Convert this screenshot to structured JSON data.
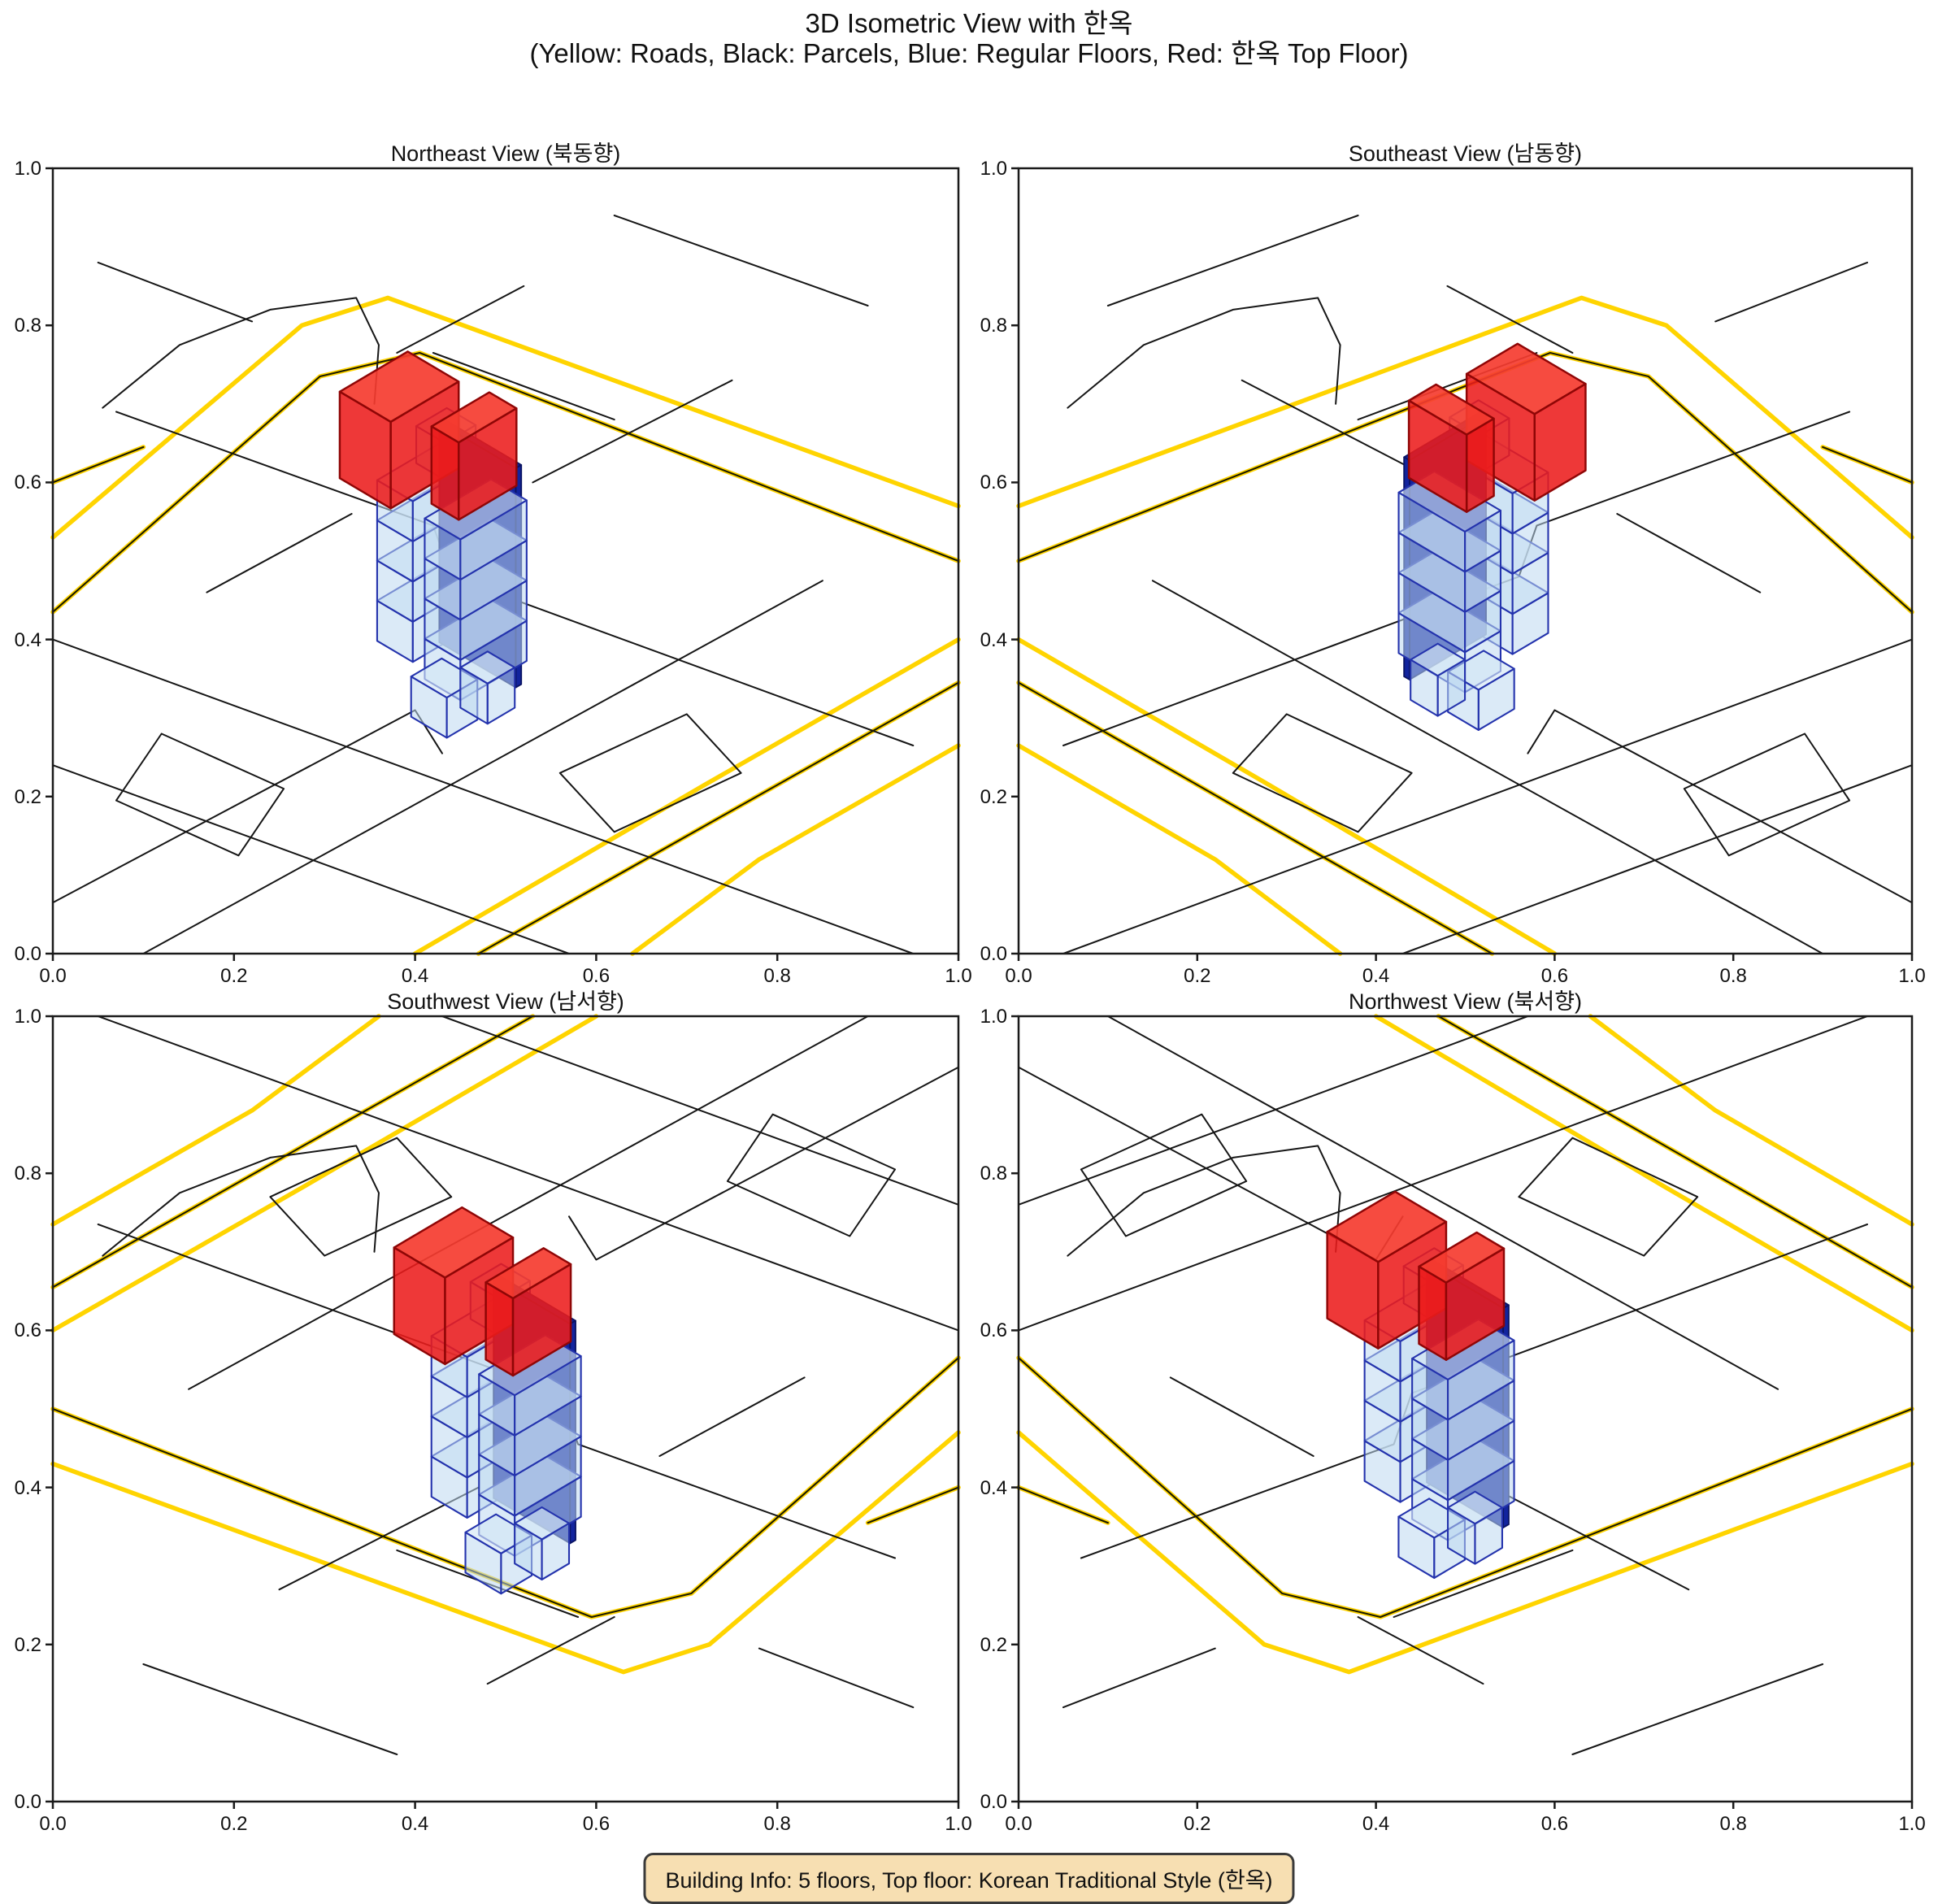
{
  "header": {
    "title": "3D Isometric View with 한옥",
    "subtitle": "(Yellow: Roads, Black: Parcels, Blue: Regular Floors, Red: 한옥 Top Floor)"
  },
  "info": {
    "text": "Building Info: 5 floors, Top floor: Korean Traditional Style (한옥)"
  },
  "chart_data": {
    "type": "3d-isometric-multiview-map",
    "title": "3D Isometric View with 한옥",
    "subtitle": "(Yellow: Roads, Black: Parcels, Blue: Regular Floors, Red: 한옥 Top Floor)",
    "legend_meaning": {
      "yellow": "Roads",
      "black": "Parcels",
      "blue": "Regular Floors",
      "red": "한옥 Top Floor"
    },
    "building_info": {
      "floors": 5,
      "top_floor_style": "Korean Traditional Style (한옥)"
    },
    "axis": {
      "x_ticks": [
        "0.0",
        "0.2",
        "0.4",
        "0.6",
        "0.8",
        "1.0"
      ],
      "y_ticks": [
        "0.0",
        "0.2",
        "0.4",
        "0.6",
        "0.8",
        "1.0"
      ],
      "x_range": [
        0,
        1
      ],
      "y_range": [
        0,
        1
      ],
      "grid": false
    },
    "colors": {
      "road_yellow": "#FFD400",
      "road_casing": "#1a1a00",
      "parcel_black": "#161616",
      "frame": "#1a1a1a",
      "blue_fill": "rgba(190,216,240,0.55)",
      "blue_top_fill": "rgba(212,231,246,0.65)",
      "blue_edge": "#2433ad",
      "core_fill": "#12249e",
      "core_edge": "#0a1464",
      "red_fill": "rgba(236,28,28,0.88)",
      "red_top_fill": "rgba(245,60,48,0.92)",
      "red_edge": "#8f0606",
      "info_bg": "#F7DFB2"
    },
    "views": [
      {
        "id": "northeast",
        "title": "Northeast View (북동향)",
        "map_transform": "none",
        "building": {
          "fx": 0.42,
          "fy": 0.47,
          "mirror": false
        }
      },
      {
        "id": "southeast",
        "title": "Southeast View (남동향)",
        "map_transform": "mirror-x",
        "building": {
          "fx": 0.53,
          "fy": 0.46,
          "mirror": true
        }
      },
      {
        "id": "southwest",
        "title": "Southwest View (남서향)",
        "map_transform": "rotate-180",
        "building": {
          "fx": 0.48,
          "fy": 0.48,
          "mirror": false
        }
      },
      {
        "id": "northwest",
        "title": "Northwest View (북서향)",
        "map_transform": "mirror-y",
        "building": {
          "fx": 0.45,
          "fy": 0.46,
          "mirror": false
        }
      }
    ],
    "map_geometry": {
      "gold_roads": [
        [
          [
            0.0,
            0.47
          ],
          [
            0.275,
            0.2
          ],
          [
            0.37,
            0.165
          ],
          [
            1.0,
            0.43
          ]
        ],
        [
          [
            0.4,
            1.0
          ],
          [
            0.72,
            0.785
          ],
          [
            1.0,
            0.6
          ]
        ],
        [
          [
            0.64,
            1.0
          ],
          [
            0.78,
            0.88
          ],
          [
            1.0,
            0.735
          ]
        ]
      ],
      "cased_roads": [
        [
          [
            0.0,
            0.565
          ],
          [
            0.295,
            0.265
          ],
          [
            0.405,
            0.235
          ],
          [
            1.0,
            0.5
          ]
        ],
        [
          [
            0.47,
            1.0
          ],
          [
            1.0,
            0.655
          ]
        ],
        [
          [
            0.0,
            0.4
          ],
          [
            0.1,
            0.355
          ]
        ]
      ],
      "parcel_lines": [
        [
          [
            0.0,
            0.6
          ],
          [
            0.95,
            1.0
          ]
        ],
        [
          [
            0.0,
            0.76
          ],
          [
            0.57,
            1.0
          ]
        ],
        [
          [
            0.07,
            0.31
          ],
          [
            0.42,
            0.455
          ],
          [
            0.44,
            0.52
          ],
          [
            0.95,
            0.735
          ]
        ],
        [
          [
            0.42,
            0.235
          ],
          [
            0.62,
            0.32
          ]
        ],
        [
          [
            0.1,
            1.0
          ],
          [
            0.85,
            0.525
          ]
        ],
        [
          [
            0.0,
            0.935
          ],
          [
            0.4,
            0.69
          ],
          [
            0.43,
            0.745
          ]
        ],
        [
          [
            0.38,
            0.235
          ],
          [
            0.52,
            0.15
          ]
        ],
        [
          [
            0.53,
            0.4
          ],
          [
            0.75,
            0.27
          ]
        ],
        [
          [
            0.17,
            0.54
          ],
          [
            0.33,
            0.44
          ]
        ],
        [
          [
            0.12,
            0.72
          ],
          [
            0.255,
            0.79
          ],
          [
            0.205,
            0.875
          ],
          [
            0.07,
            0.805
          ],
          [
            0.12,
            0.72
          ]
        ],
        [
          [
            0.56,
            0.77
          ],
          [
            0.7,
            0.695
          ],
          [
            0.76,
            0.77
          ],
          [
            0.62,
            0.845
          ],
          [
            0.56,
            0.77
          ]
        ],
        [
          [
            0.62,
            0.06
          ],
          [
            0.9,
            0.175
          ]
        ],
        [
          [
            0.05,
            0.12
          ],
          [
            0.22,
            0.195
          ]
        ]
      ],
      "boundary_arc": [
        [
          [
            0.055,
            0.305
          ],
          [
            0.14,
            0.225
          ],
          [
            0.24,
            0.18
          ],
          [
            0.335,
            0.165
          ],
          [
            0.36,
            0.225
          ],
          [
            0.355,
            0.3
          ]
        ]
      ]
    },
    "building_geometry": {
      "iso": {
        "U": 44,
        "V": 26,
        "scale": 0.95,
        "center": [
          72.6,
          -134
        ]
      },
      "boxes": [
        {
          "t": "blue",
          "a0": 0,
          "a1": 1.9,
          "b0": 0,
          "b1": 1.05,
          "z0": 0,
          "z1": 52
        },
        {
          "t": "blue",
          "a0": 0,
          "a1": 1.9,
          "b0": 0,
          "b1": 1.05,
          "z0": 52,
          "z1": 104
        },
        {
          "t": "blue",
          "a0": 0,
          "a1": 1.9,
          "b0": 0,
          "b1": 1.05,
          "z0": 104,
          "z1": 156
        },
        {
          "t": "blue",
          "a0": 0,
          "a1": 1.9,
          "b0": 0,
          "b1": 1.05,
          "z0": 156,
          "z1": 208
        },
        {
          "t": "blue",
          "a0": 1.0,
          "a1": 1.9,
          "b0": 0.15,
          "b1": 1.0,
          "z0": 208,
          "z1": 256
        },
        {
          "t": "core",
          "a0": 1.88,
          "a1": 2.04,
          "b0": -0.05,
          "b1": 2.2,
          "z0": -52,
          "z1": 232
        },
        {
          "t": "blue",
          "a0": 0.25,
          "a1": 2.2,
          "b0": 1.15,
          "b1": 2.2,
          "z0": -26,
          "z1": 26
        },
        {
          "t": "blue",
          "a0": 0.25,
          "a1": 2.2,
          "b0": 1.15,
          "b1": 2.2,
          "z0": 26,
          "z1": 78
        },
        {
          "t": "blue",
          "a0": 0.25,
          "a1": 2.2,
          "b0": 1.15,
          "b1": 2.2,
          "z0": 78,
          "z1": 130
        },
        {
          "t": "blue",
          "a0": 0.25,
          "a1": 2.2,
          "b0": 1.15,
          "b1": 2.2,
          "z0": 130,
          "z1": 182
        },
        {
          "t": "blue",
          "a0": 0.15,
          "a1": 1.05,
          "b0": 0.85,
          "b1": 1.9,
          "z0": -80,
          "z1": -28
        },
        {
          "t": "blue",
          "a0": 1.1,
          "a1": 1.9,
          "b0": 1.35,
          "b1": 2.15,
          "z0": -80,
          "z1": -28
        },
        {
          "t": "red",
          "a0": -0.5,
          "a1": 1.5,
          "b0": -0.6,
          "b1": 0.9,
          "z0": 208,
          "z1": 320
        },
        {
          "t": "red",
          "a0": 0.6,
          "a1": 2.3,
          "b0": 1.0,
          "b1": 1.8,
          "z0": 188,
          "z1": 288
        }
      ]
    }
  }
}
